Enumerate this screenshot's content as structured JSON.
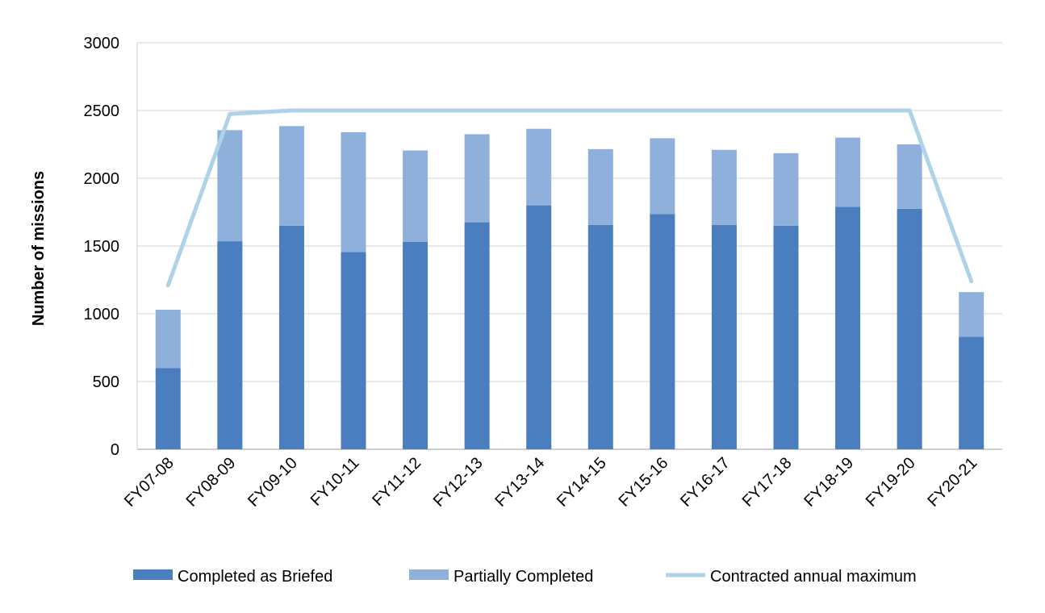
{
  "chart_data": {
    "type": "bar",
    "stacked": true,
    "title": "",
    "xlabel": "",
    "ylabel": "Number of missions",
    "ylim": [
      0,
      3000
    ],
    "yticks": [
      0,
      500,
      1000,
      1500,
      2000,
      2500,
      3000
    ],
    "grid": "horizontal",
    "categories": [
      "FY07-08",
      "FY08-09",
      "FY09-10",
      "FY10-11",
      "FY11-12",
      "FY12-13",
      "FY13-14",
      "FY14-15",
      "FY15-16",
      "FY16-17",
      "FY17-18",
      "FY18-19",
      "FY19-20",
      "FY20-21"
    ],
    "series": [
      {
        "name": "Completed as Briefed",
        "kind": "bar",
        "color": "#4a7ebf",
        "values": [
          600,
          1535,
          1650,
          1455,
          1530,
          1675,
          1800,
          1655,
          1735,
          1655,
          1650,
          1790,
          1775,
          830
        ]
      },
      {
        "name": "Partially Completed",
        "kind": "bar",
        "color": "#8fb0db",
        "values": [
          430,
          820,
          735,
          885,
          675,
          650,
          565,
          560,
          560,
          555,
          535,
          510,
          475,
          330
        ]
      },
      {
        "name": "Contracted annual maximum",
        "kind": "line",
        "color": "#add3e9",
        "values": [
          1210,
          2475,
          2500,
          2500,
          2500,
          2500,
          2500,
          2500,
          2500,
          2500,
          2500,
          2500,
          2500,
          1240
        ]
      }
    ],
    "legend_position": "bottom"
  }
}
